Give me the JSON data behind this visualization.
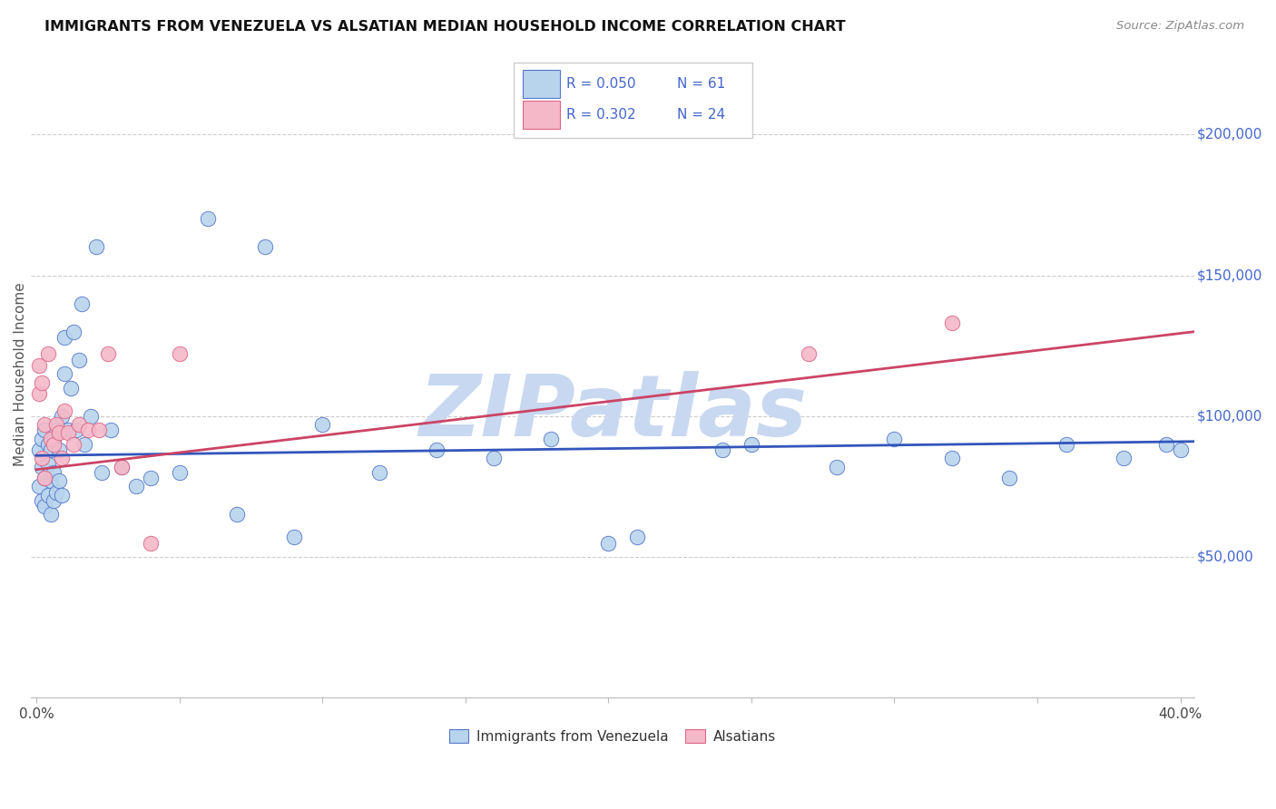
{
  "title": "IMMIGRANTS FROM VENEZUELA VS ALSATIAN MEDIAN HOUSEHOLD INCOME CORRELATION CHART",
  "source": "Source: ZipAtlas.com",
  "ylabel": "Median Household Income",
  "ytick_labels": [
    "$50,000",
    "$100,000",
    "$150,000",
    "$200,000"
  ],
  "ytick_values": [
    50000,
    100000,
    150000,
    200000
  ],
  "ylim": [
    0,
    230000
  ],
  "xlim": [
    -0.002,
    0.405
  ],
  "legend_label_blue": "Immigrants from Venezuela",
  "legend_label_pink": "Alsatians",
  "blue_color": "#b8d4ed",
  "pink_color": "#f5b8c8",
  "blue_edge_color": "#5577cc",
  "pink_edge_color": "#dd6688",
  "blue_line_color": "#3355bb",
  "pink_line_color": "#cc4466",
  "text_color_blue": "#4466cc",
  "watermark_color": "#c8d8f0",
  "blue_scatter_x": [
    0.001,
    0.001,
    0.002,
    0.002,
    0.002,
    0.003,
    0.003,
    0.003,
    0.004,
    0.004,
    0.004,
    0.005,
    0.005,
    0.005,
    0.006,
    0.006,
    0.006,
    0.007,
    0.007,
    0.008,
    0.008,
    0.009,
    0.009,
    0.01,
    0.01,
    0.011,
    0.012,
    0.013,
    0.014,
    0.015,
    0.016,
    0.017,
    0.019,
    0.021,
    0.023,
    0.026,
    0.03,
    0.035,
    0.04,
    0.05,
    0.06,
    0.08,
    0.1,
    0.12,
    0.14,
    0.16,
    0.18,
    0.2,
    0.24,
    0.28,
    0.3,
    0.32,
    0.34,
    0.36,
    0.38,
    0.395,
    0.4,
    0.21,
    0.25,
    0.07,
    0.09
  ],
  "blue_scatter_y": [
    88000,
    75000,
    92000,
    82000,
    70000,
    95000,
    78000,
    68000,
    90000,
    83000,
    72000,
    88000,
    77000,
    65000,
    92000,
    80000,
    70000,
    95000,
    73000,
    88000,
    77000,
    100000,
    72000,
    128000,
    115000,
    95000,
    110000,
    130000,
    95000,
    120000,
    140000,
    90000,
    100000,
    160000,
    80000,
    95000,
    82000,
    75000,
    78000,
    80000,
    170000,
    160000,
    97000,
    80000,
    88000,
    85000,
    92000,
    55000,
    88000,
    82000,
    92000,
    85000,
    78000,
    90000,
    85000,
    90000,
    88000,
    57000,
    90000,
    65000,
    57000
  ],
  "pink_scatter_x": [
    0.001,
    0.001,
    0.002,
    0.002,
    0.003,
    0.003,
    0.004,
    0.005,
    0.006,
    0.007,
    0.008,
    0.009,
    0.01,
    0.011,
    0.013,
    0.015,
    0.018,
    0.022,
    0.025,
    0.03,
    0.04,
    0.05,
    0.27,
    0.32
  ],
  "pink_scatter_y": [
    118000,
    108000,
    112000,
    85000,
    97000,
    78000,
    122000,
    92000,
    90000,
    97000,
    94000,
    85000,
    102000,
    94000,
    90000,
    97000,
    95000,
    95000,
    122000,
    82000,
    55000,
    122000,
    122000,
    133000
  ],
  "blue_trendline_x": [
    0.0,
    0.405
  ],
  "blue_trendline_y": [
    86000,
    91000
  ],
  "pink_trendline_x": [
    0.0,
    0.405
  ],
  "pink_trendline_y": [
    81000,
    130000
  ]
}
